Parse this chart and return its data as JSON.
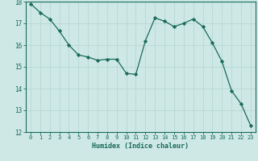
{
  "x": [
    0,
    1,
    2,
    3,
    4,
    5,
    6,
    7,
    8,
    9,
    10,
    11,
    12,
    13,
    14,
    15,
    16,
    17,
    18,
    19,
    20,
    21,
    22,
    23
  ],
  "y": [
    17.9,
    17.5,
    17.2,
    16.65,
    16.0,
    15.55,
    15.45,
    15.3,
    15.35,
    15.35,
    14.7,
    14.65,
    16.2,
    17.25,
    17.1,
    16.85,
    17.0,
    17.2,
    16.85,
    16.1,
    15.25,
    13.9,
    13.3,
    12.3
  ],
  "xlabel": "Humidex (Indice chaleur)",
  "line_color": "#1a6b5a",
  "marker_color": "#1a6b5a",
  "bg_color": "#cde8e5",
  "grid_color": "#b8d8d4",
  "tick_color": "#1a6b5a",
  "ylim": [
    12,
    18
  ],
  "xlim": [
    -0.5,
    23.5
  ],
  "yticks": [
    12,
    13,
    14,
    15,
    16,
    17,
    18
  ]
}
